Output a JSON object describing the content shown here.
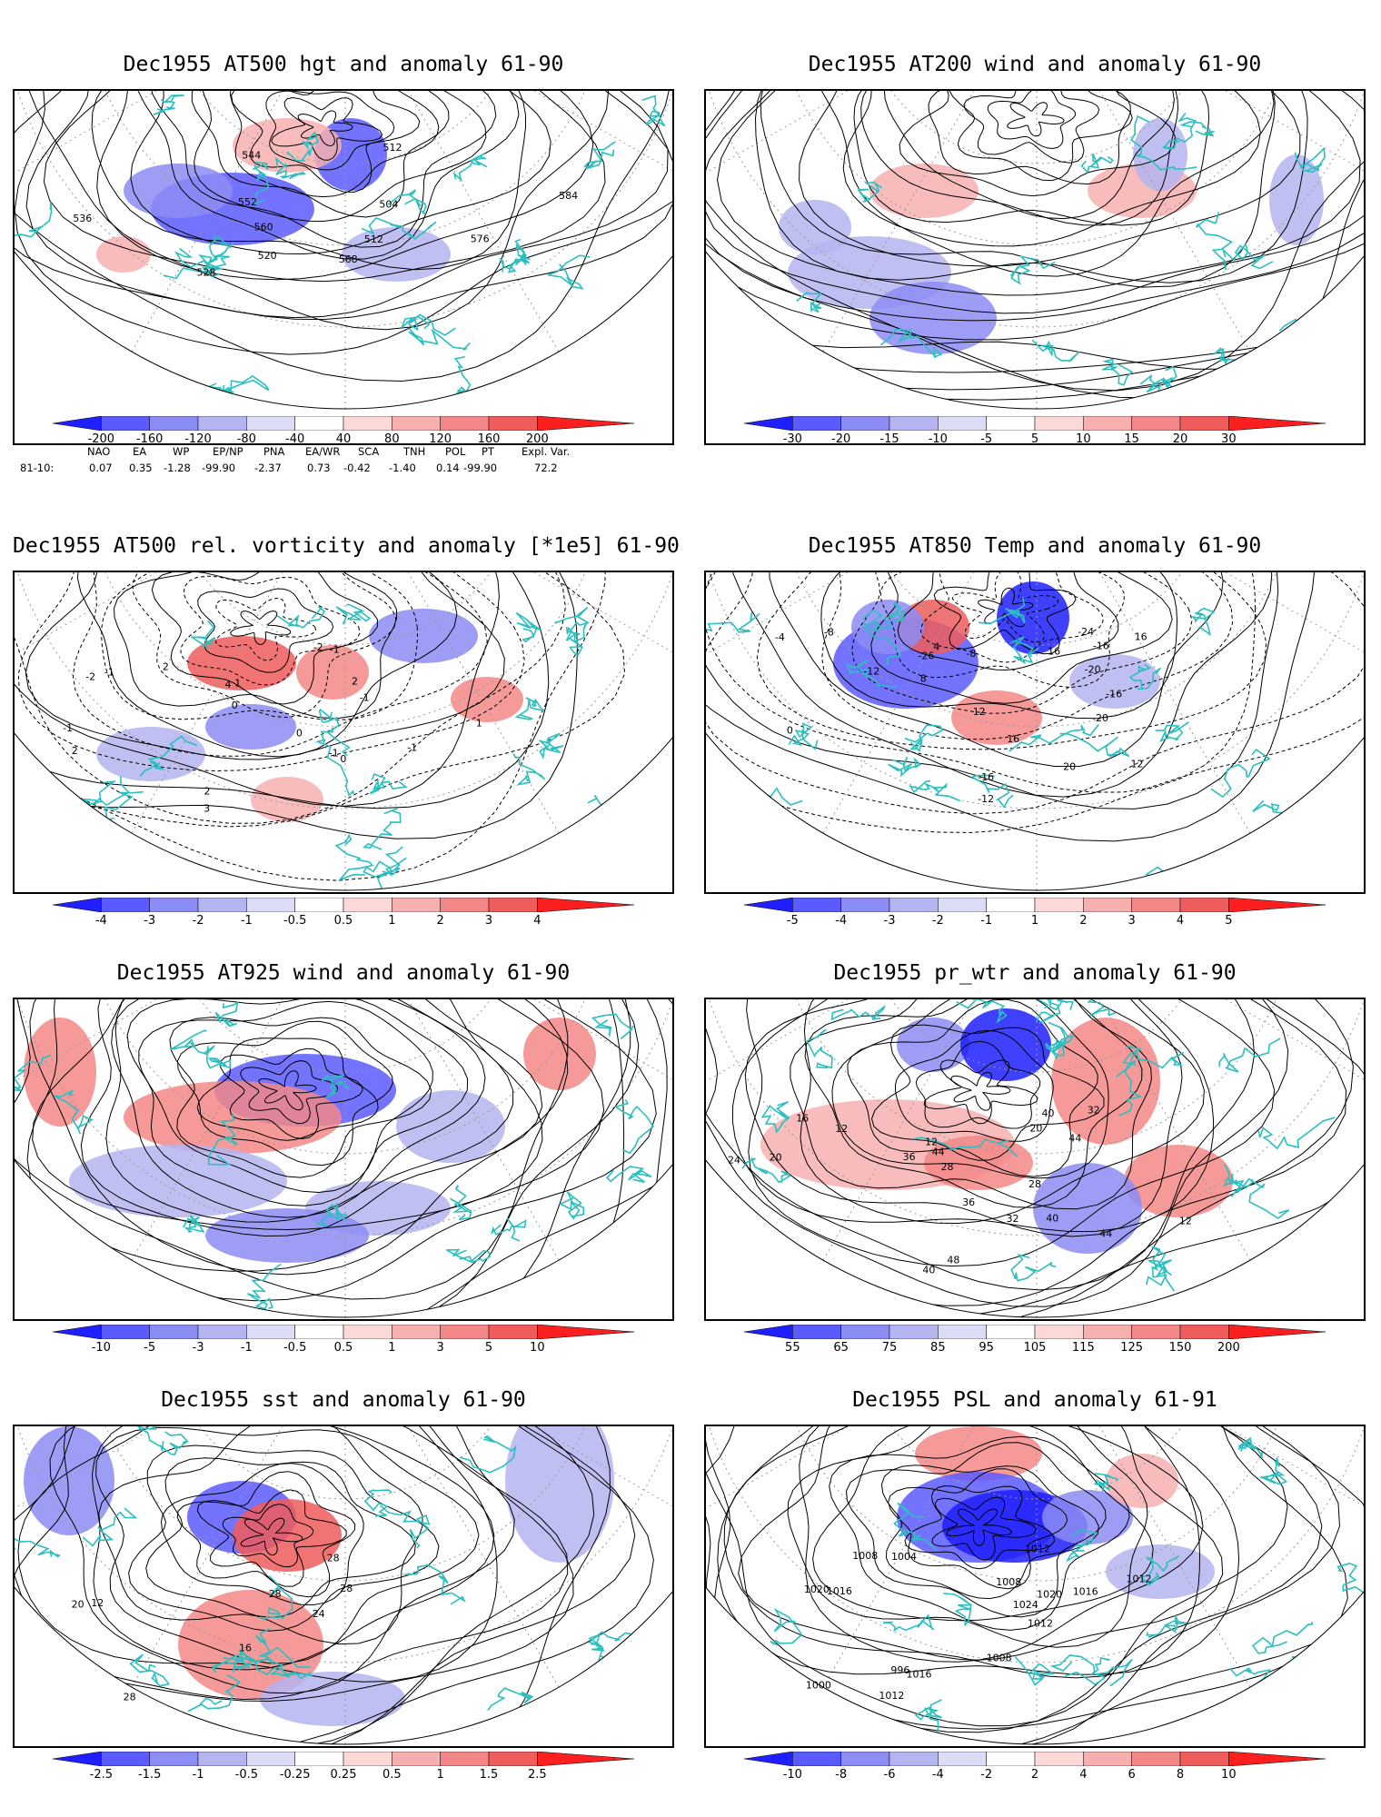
{
  "panels": [
    {
      "title": "Dec1955 AT500 hgt and anomaly 61-90",
      "colorbar_colors": [
        "#1f1fff",
        "#5a5aff",
        "#8c8cf5",
        "#b4b4f0",
        "#dcdcf7",
        "#ffffff",
        "#fbd9d9",
        "#f7b0b0",
        "#f38787",
        "#ef5c5c",
        "#fb1f1f"
      ],
      "colorbar_labels": [
        "-200",
        "-160",
        "-120",
        "-80",
        "-40",
        "40",
        "80",
        "120",
        "160",
        "200"
      ],
      "contour_labels": [
        "512",
        "504",
        "512",
        "520",
        "528",
        "536",
        "544",
        "552",
        "560",
        "568",
        "576",
        "584"
      ]
    },
    {
      "title": "Dec1955 AT200 wind and anomaly 61-90",
      "colorbar_colors": [
        "#1f1fff",
        "#5a5aff",
        "#8c8cf5",
        "#b4b4f0",
        "#dcdcf7",
        "#ffffff",
        "#fbd9d9",
        "#f7b0b0",
        "#f38787",
        "#ef5c5c",
        "#fb1f1f"
      ],
      "colorbar_labels": [
        "-30",
        "-20",
        "-15",
        "-10",
        "-5",
        "5",
        "10",
        "15",
        "20",
        "30"
      ],
      "contour_labels": []
    },
    {
      "title": "Dec1955 AT500 rel. vorticity and anomaly [*1e5] 61-90",
      "colorbar_colors": [
        "#1f1fff",
        "#5a5aff",
        "#8c8cf5",
        "#b4b4f0",
        "#dcdcf7",
        "#ffffff",
        "#fbd9d9",
        "#f7b0b0",
        "#f38787",
        "#ef5c5c",
        "#fb1f1f"
      ],
      "colorbar_labels": [
        "-4",
        "-3",
        "-2",
        "-1",
        "-0.5",
        "0.5",
        "1",
        "2",
        "3",
        "4"
      ],
      "contour_labels": [
        "-2",
        "2",
        "-1",
        "-1",
        "2",
        "3",
        "4",
        "2",
        "-1",
        "-2",
        "-1",
        "2",
        "1",
        "0",
        "0",
        "0",
        "-1",
        "1",
        "-1"
      ]
    },
    {
      "title": "Dec1955 AT850 Temp and anomaly 61-90",
      "colorbar_colors": [
        "#1f1fff",
        "#5a5aff",
        "#8c8cf5",
        "#b4b4f0",
        "#dcdcf7",
        "#ffffff",
        "#fbd9d9",
        "#f7b0b0",
        "#f38787",
        "#ef5c5c",
        "#fb1f1f"
      ],
      "colorbar_labels": [
        "-5",
        "-4",
        "-3",
        "-2",
        "-1",
        "1",
        "2",
        "3",
        "4",
        "5"
      ],
      "contour_labels": [
        "-24",
        "-20",
        "-16",
        "-20",
        "-16",
        "-12",
        "-8",
        "-26",
        "-12",
        "-8",
        "-4",
        "0",
        "4",
        "8",
        "12",
        "16",
        "20",
        "12",
        "16",
        "-16",
        "16"
      ]
    },
    {
      "title": "Dec1955 AT925 wind and anomaly 61-90",
      "colorbar_colors": [
        "#1f1fff",
        "#5a5aff",
        "#8c8cf5",
        "#b4b4f0",
        "#dcdcf7",
        "#ffffff",
        "#fbd9d9",
        "#f7b0b0",
        "#f38787",
        "#ef5c5c",
        "#fb1f1f"
      ],
      "colorbar_labels": [
        "-10",
        "-5",
        "-3",
        "-1",
        "-0.5",
        "0.5",
        "1",
        "3",
        "5",
        "10"
      ],
      "contour_labels": []
    },
    {
      "title": "Dec1955 pr_wtr and anomaly 61-90",
      "colorbar_colors": [
        "#1f1fff",
        "#5a5aff",
        "#8c8cf5",
        "#b4b4f0",
        "#dcdcf7",
        "#ffffff",
        "#fbd9d9",
        "#f7b0b0",
        "#f38787",
        "#ef5c5c",
        "#fb1f1f"
      ],
      "colorbar_labels": [
        "55",
        "65",
        "75",
        "85",
        "95",
        "105",
        "115",
        "125",
        "150",
        "200"
      ],
      "contour_labels": [
        "40",
        "44",
        "28",
        "32",
        "48",
        "40",
        "44",
        "36",
        "12",
        "16",
        "20",
        "24",
        "12",
        "28",
        "36",
        "40",
        "44",
        "12",
        "20",
        "32"
      ]
    },
    {
      "title": "Dec1955 sst and anomaly 61-90",
      "colorbar_colors": [
        "#1f1fff",
        "#5a5aff",
        "#8c8cf5",
        "#b4b4f0",
        "#dcdcf7",
        "#ffffff",
        "#fbd9d9",
        "#f7b0b0",
        "#f38787",
        "#ef5c5c",
        "#fb1f1f"
      ],
      "colorbar_labels": [
        "-2.5",
        "-1.5",
        "-1",
        "-0.5",
        "-0.25",
        "0.25",
        "0.5",
        "1",
        "1.5",
        "2.5"
      ],
      "contour_labels": [
        "28",
        "24",
        "16",
        "12",
        "20",
        "28",
        "28",
        "28"
      ]
    },
    {
      "title": "Dec1955 PSL and anomaly 61-91",
      "colorbar_colors": [
        "#1f1fff",
        "#5a5aff",
        "#8c8cf5",
        "#b4b4f0",
        "#dcdcf7",
        "#ffffff",
        "#fbd9d9",
        "#f7b0b0",
        "#f38787",
        "#ef5c5c",
        "#fb1f1f"
      ],
      "colorbar_labels": [
        "-10",
        "-8",
        "-6",
        "-4",
        "-2",
        "2",
        "4",
        "6",
        "8",
        "10"
      ],
      "contour_labels": [
        "1012",
        "1020",
        "1012",
        "1008",
        "996",
        "1000",
        "1004",
        "1008",
        "1016",
        "1020",
        "1016",
        "1012",
        "1008",
        "1024",
        "1016",
        "1012"
      ]
    }
  ],
  "teleconnections": {
    "headers": [
      "NAO",
      "EA",
      "WP",
      "EP/NP",
      "PNA",
      "EA/WR",
      "SCA",
      "TNH",
      "POL",
      "PT",
      "Expl. Var."
    ],
    "row_label": "81-10:",
    "values": [
      "0.07",
      "0.35",
      "-1.28",
      "-99.90",
      "-2.37",
      "0.73",
      "-0.42",
      "-1.40",
      "0.14",
      "-99.90",
      "72.2"
    ]
  },
  "colors": {
    "coastline": "#2bbfbf",
    "contour": "#000000",
    "negative_anomaly": "#5a5aff",
    "positive_anomaly": "#ef5c5c"
  }
}
